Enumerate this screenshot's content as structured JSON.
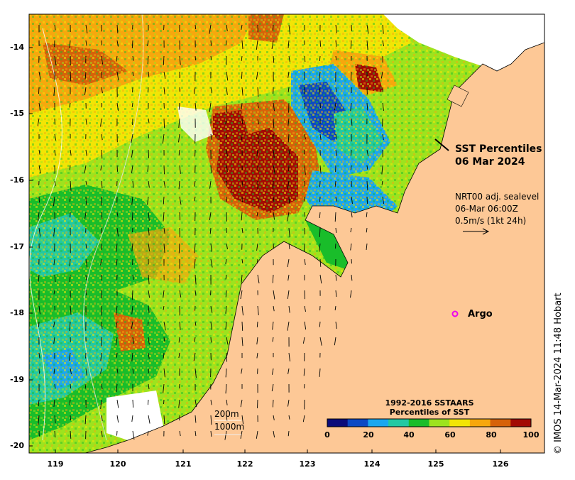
{
  "title": {
    "line1": "SST Percentiles",
    "line2": "06 Mar 2024"
  },
  "currents": {
    "line1": "NRT00 adj. sealevel",
    "line2": "06-Mar 06:00Z",
    "line3": "0.5m/s (1kt 24h)"
  },
  "argo_label": "Argo",
  "bathymetry_labels": [
    "200m",
    "1000m"
  ],
  "colorbar": {
    "title_line1": "1992-2016 SSTAARS",
    "title_line2": "Percentiles of SST",
    "ticks": [
      "0",
      "20",
      "40",
      "60",
      "80",
      "100"
    ],
    "colors": [
      "#0c0c7a",
      "#0c49c4",
      "#1aa7ef",
      "#22c9a3",
      "#19bd2a",
      "#9de31e",
      "#f2e505",
      "#f7a70d",
      "#d6620a",
      "#a30a04"
    ]
  },
  "axes": {
    "y_ticks": [
      "-14",
      "-15",
      "-16",
      "-17",
      "-18",
      "-19",
      "-20"
    ],
    "x_ticks": [
      "119",
      "120",
      "121",
      "122",
      "123",
      "124",
      "125",
      "126"
    ],
    "lon_range": [
      118.65,
      126.73
    ],
    "lat_range": [
      -20.1,
      -13.5
    ]
  },
  "credit": "© IMOS 14-Mar-2024 11:48 Hobart",
  "colors": {
    "land": "#fdc896",
    "no_data": "#ffffff",
    "argo_marker": "#ee00ee"
  }
}
